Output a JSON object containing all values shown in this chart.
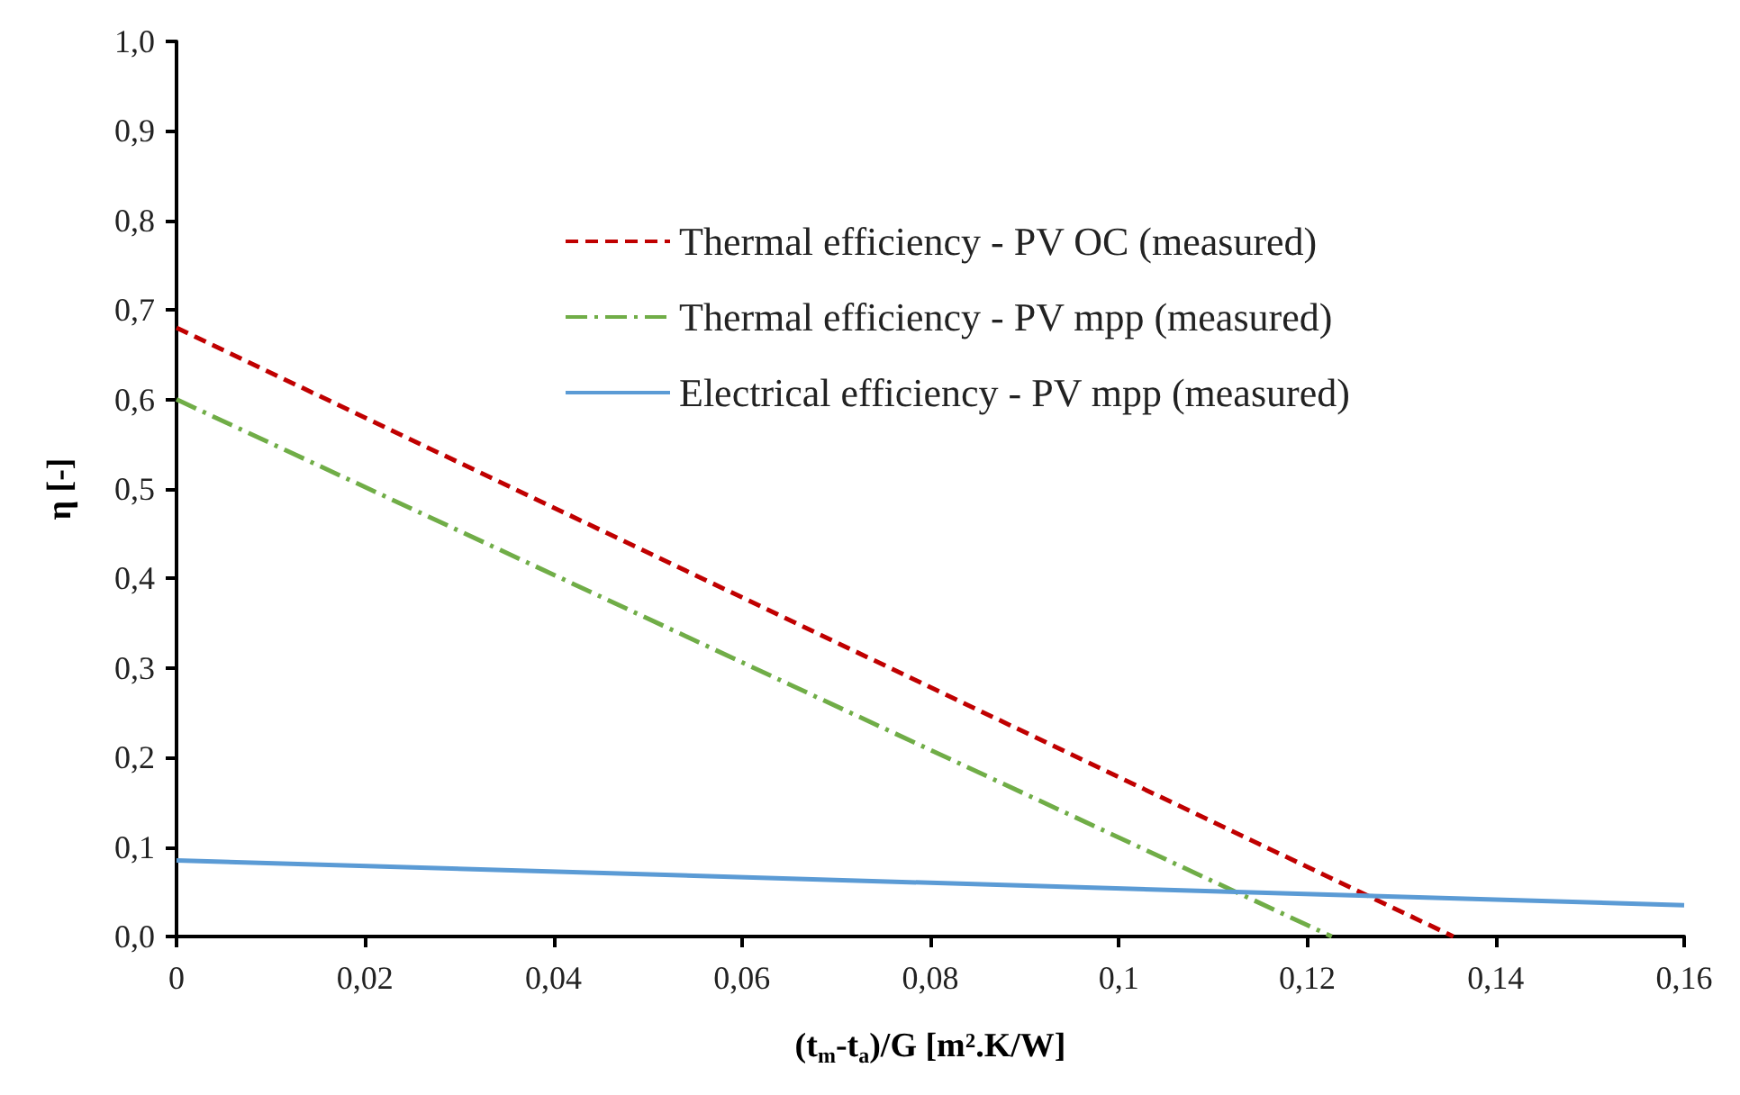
{
  "chart_data": {
    "type": "line",
    "xlabel": "(t$_{m}$-t$_{a}$)/G [m².K/W]",
    "ylabel": "η [-]",
    "xlim": [
      0,
      0.16
    ],
    "xticks": [
      {
        "value": 0,
        "label": "0"
      },
      {
        "value": 0.02,
        "label": "0,02"
      },
      {
        "value": 0.04,
        "label": "0,04"
      },
      {
        "value": 0.06,
        "label": "0,06"
      },
      {
        "value": 0.08,
        "label": "0,08"
      },
      {
        "value": 0.1,
        "label": "0,1"
      },
      {
        "value": 0.12,
        "label": "0,12"
      },
      {
        "value": 0.14,
        "label": "0,14"
      },
      {
        "value": 0.16,
        "label": "0,16"
      }
    ],
    "ylim": [
      0,
      1
    ],
    "yticks": [
      {
        "value": 0,
        "label": "0,0"
      },
      {
        "value": 0.1,
        "label": "0,1"
      },
      {
        "value": 0.2,
        "label": "0,2"
      },
      {
        "value": 0.3,
        "label": "0,3"
      },
      {
        "value": 0.4,
        "label": "0,4"
      },
      {
        "value": 0.5,
        "label": "0,5"
      },
      {
        "value": 0.6,
        "label": "0,6"
      },
      {
        "value": 0.7,
        "label": "0,7"
      },
      {
        "value": 0.8,
        "label": "0,8"
      },
      {
        "value": 0.9,
        "label": "0,9"
      },
      {
        "value": 1,
        "label": "1,0"
      }
    ],
    "grid": false,
    "legend": "top",
    "marker": "none",
    "series": [
      {
        "name": "Thermal efficiency - PV OC (measured)",
        "color": "#c00000",
        "line_style": "dashed",
        "x": [
          0,
          0.1355
        ],
        "values": [
          0.68,
          0
        ]
      },
      {
        "name": "Thermal efficiency - PV mpp (measured)",
        "color": "#70ad47",
        "line_style": "dashdot",
        "x": [
          0,
          0.1226
        ],
        "values": [
          0.6,
          0
        ]
      },
      {
        "name": "Electrical efficiency - PV mpp (measured)",
        "color": "#5b9bd5",
        "line_style": "solid",
        "x": [
          0,
          0.16
        ],
        "values": [
          0.085,
          0.035
        ]
      }
    ]
  }
}
